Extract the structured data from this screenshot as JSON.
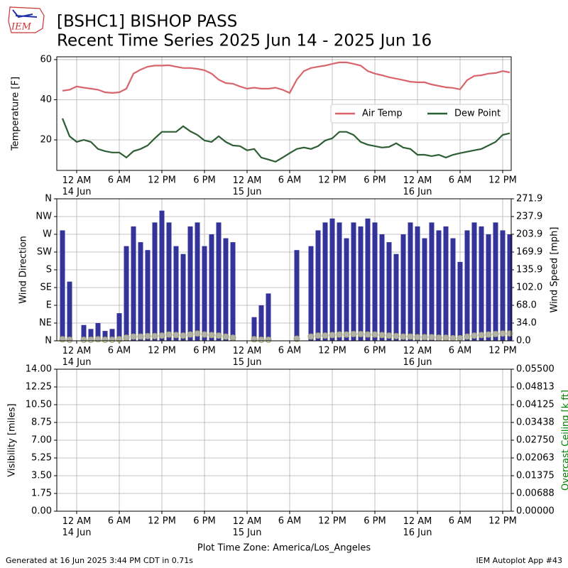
{
  "logo": "IEM",
  "footer_left": "Generated at 16 Jun 2025 3:44 PM CDT in 0.71s",
  "footer_right": "IEM Autoplot App #43",
  "chart_data": [
    {
      "type": "line",
      "title": "[BSHC1] BISHOP PASS",
      "subtitle": "Recent Time Series 2025 Jun 14 - 2025 Jun 16",
      "ylabel": "Temperature [F]",
      "grid": true,
      "legend": "center right",
      "xlim": [
        "2025-06-13T21:12",
        "2025-06-16T13:12"
      ],
      "xticks": [
        {
          "value": "2025-06-14T00:00",
          "label": "12 AM\n14 Jun"
        },
        {
          "value": "2025-06-14T06:00",
          "label": "6 AM"
        },
        {
          "value": "2025-06-14T12:00",
          "label": "12 PM"
        },
        {
          "value": "2025-06-14T18:00",
          "label": "6 PM"
        },
        {
          "value": "2025-06-15T00:00",
          "label": "12 AM\n15 Jun"
        },
        {
          "value": "2025-06-15T06:00",
          "label": "6 AM"
        },
        {
          "value": "2025-06-15T12:00",
          "label": "12 PM"
        },
        {
          "value": "2025-06-15T18:00",
          "label": "6 PM"
        },
        {
          "value": "2025-06-16T00:00",
          "label": "12 AM\n16 Jun"
        },
        {
          "value": "2025-06-16T06:00",
          "label": "6 AM"
        },
        {
          "value": "2025-06-16T12:00",
          "label": "12 PM"
        }
      ],
      "ylim": [
        4.8,
        61.4
      ],
      "yticks": [
        20,
        40,
        60
      ],
      "x": [
        "2025-06-13T22:00",
        "2025-06-13T23:00",
        "2025-06-14T00:00",
        "2025-06-14T01:00",
        "2025-06-14T02:00",
        "2025-06-14T03:00",
        "2025-06-14T04:00",
        "2025-06-14T05:00",
        "2025-06-14T06:00",
        "2025-06-14T07:00",
        "2025-06-14T08:00",
        "2025-06-14T09:00",
        "2025-06-14T10:00",
        "2025-06-14T11:00",
        "2025-06-14T12:00",
        "2025-06-14T13:00",
        "2025-06-14T14:00",
        "2025-06-14T15:00",
        "2025-06-14T16:00",
        "2025-06-14T17:00",
        "2025-06-14T18:00",
        "2025-06-14T19:00",
        "2025-06-14T20:00",
        "2025-06-14T21:00",
        "2025-06-14T22:00",
        "2025-06-14T23:00",
        "2025-06-15T00:00",
        "2025-06-15T01:00",
        "2025-06-15T02:00",
        "2025-06-15T03:00",
        "2025-06-15T04:00",
        "2025-06-15T05:00",
        "2025-06-15T06:00",
        "2025-06-15T07:00",
        "2025-06-15T08:00",
        "2025-06-15T09:00",
        "2025-06-15T10:00",
        "2025-06-15T11:00",
        "2025-06-15T12:00",
        "2025-06-15T13:00",
        "2025-06-15T14:00",
        "2025-06-15T15:00",
        "2025-06-15T16:00",
        "2025-06-15T17:00",
        "2025-06-15T18:00",
        "2025-06-15T19:00",
        "2025-06-15T20:00",
        "2025-06-15T21:00",
        "2025-06-15T22:00",
        "2025-06-15T23:00",
        "2025-06-16T00:00",
        "2025-06-16T01:00",
        "2025-06-16T02:00",
        "2025-06-16T03:00",
        "2025-06-16T04:00",
        "2025-06-16T05:00",
        "2025-06-16T06:00",
        "2025-06-16T07:00",
        "2025-06-16T08:00",
        "2025-06-16T09:00",
        "2025-06-16T10:00",
        "2025-06-16T11:00",
        "2025-06-16T12:00",
        "2025-06-16T13:00"
      ],
      "series": [
        {
          "name": "Air Temp",
          "color": "#d9646b",
          "values": [
            44.5,
            45,
            46.6,
            46,
            45.5,
            45,
            43.7,
            43.4,
            43.7,
            45.5,
            53,
            55,
            56.5,
            57,
            57,
            57.2,
            56.5,
            55.8,
            55.8,
            55.4,
            54.7,
            53,
            50,
            48.3,
            48,
            46.6,
            45.5,
            46,
            45.5,
            45.5,
            46,
            45,
            43.4,
            50,
            54.3,
            55.8,
            56.5,
            57,
            57.9,
            58.6,
            58.6,
            57.9,
            57,
            54.3,
            53,
            52.2,
            51.2,
            50.5,
            49.8,
            49,
            48.7,
            48.7,
            47.6,
            46.9,
            46.2,
            45.9,
            45.2,
            49.8,
            51.9,
            52.2,
            53,
            53.3,
            54.3,
            53.6
          ]
        },
        {
          "name": "Dew Point",
          "color": "#2e5e34",
          "values": [
            30.7,
            21.8,
            19,
            20,
            19,
            15.5,
            14.4,
            13.7,
            13.7,
            11.2,
            14.4,
            15.5,
            17.2,
            20.8,
            24,
            24,
            24,
            26.8,
            24.3,
            22.5,
            19.7,
            19,
            21.8,
            19,
            17.2,
            16.9,
            14.8,
            15.5,
            11.2,
            10.2,
            9.1,
            11.2,
            13.4,
            15.5,
            16.2,
            15.5,
            16.9,
            19.7,
            20.8,
            24,
            24,
            22.5,
            19,
            17.6,
            16.9,
            16.2,
            16.5,
            18.3,
            16.2,
            15.5,
            12.6,
            12.6,
            11.9,
            12.6,
            11.2,
            12.6,
            13.4,
            14.1,
            14.8,
            15.5,
            17.2,
            19,
            22.5,
            23.3
          ]
        }
      ]
    },
    {
      "type": "bar",
      "ylabel": "Wind Direction",
      "y2label": "Wind Speed [mph]",
      "grid": true,
      "xlim": [
        "2025-06-13T21:12",
        "2025-06-16T13:12"
      ],
      "xticks": [
        {
          "value": "2025-06-14T00:00",
          "label": "12 AM\n14 Jun"
        },
        {
          "value": "2025-06-14T06:00",
          "label": "6 AM"
        },
        {
          "value": "2025-06-14T12:00",
          "label": "12 PM"
        },
        {
          "value": "2025-06-14T18:00",
          "label": "6 PM"
        },
        {
          "value": "2025-06-15T00:00",
          "label": "12 AM\n15 Jun"
        },
        {
          "value": "2025-06-15T06:00",
          "label": "6 AM"
        },
        {
          "value": "2025-06-15T12:00",
          "label": "12 PM"
        },
        {
          "value": "2025-06-15T18:00",
          "label": "6 PM"
        },
        {
          "value": "2025-06-16T00:00",
          "label": "12 AM\n16 Jun"
        },
        {
          "value": "2025-06-16T06:00",
          "label": "6 AM"
        },
        {
          "value": "2025-06-16T12:00",
          "label": "12 PM"
        }
      ],
      "ylim": [
        0,
        360
      ],
      "yticks": [
        {
          "value": 0,
          "label": "N"
        },
        {
          "value": 45,
          "label": "NE"
        },
        {
          "value": 90,
          "label": "E"
        },
        {
          "value": 135,
          "label": "SE"
        },
        {
          "value": 180,
          "label": "S"
        },
        {
          "value": 225,
          "label": "SW"
        },
        {
          "value": 270,
          "label": "W"
        },
        {
          "value": 315,
          "label": "NW"
        },
        {
          "value": 360,
          "label": "N"
        }
      ],
      "y2lim": [
        0,
        271.9
      ],
      "y2ticks": [
        {
          "value": 0,
          "label": "0.0"
        },
        {
          "value": 34,
          "label": "34.0"
        },
        {
          "value": 68,
          "label": "68.0"
        },
        {
          "value": 102,
          "label": "102.0"
        },
        135.9,
        169.9,
        203.9,
        237.9,
        271.9
      ],
      "x": [
        "2025-06-13T22:00",
        "2025-06-13T23:00",
        "2025-06-14T00:00",
        "2025-06-14T01:00",
        "2025-06-14T02:00",
        "2025-06-14T03:00",
        "2025-06-14T04:00",
        "2025-06-14T05:00",
        "2025-06-14T06:00",
        "2025-06-14T07:00",
        "2025-06-14T08:00",
        "2025-06-14T09:00",
        "2025-06-14T10:00",
        "2025-06-14T11:00",
        "2025-06-14T12:00",
        "2025-06-14T13:00",
        "2025-06-14T14:00",
        "2025-06-14T15:00",
        "2025-06-14T16:00",
        "2025-06-14T17:00",
        "2025-06-14T18:00",
        "2025-06-14T19:00",
        "2025-06-14T20:00",
        "2025-06-14T21:00",
        "2025-06-14T22:00",
        "2025-06-14T23:00",
        "2025-06-15T00:00",
        "2025-06-15T01:00",
        "2025-06-15T02:00",
        "2025-06-15T03:00",
        "2025-06-15T04:00",
        "2025-06-15T05:00",
        "2025-06-15T06:00",
        "2025-06-15T07:00",
        "2025-06-15T08:00",
        "2025-06-15T09:00",
        "2025-06-15T10:00",
        "2025-06-15T11:00",
        "2025-06-15T12:00",
        "2025-06-15T13:00",
        "2025-06-15T14:00",
        "2025-06-15T15:00",
        "2025-06-15T16:00",
        "2025-06-15T17:00",
        "2025-06-15T18:00",
        "2025-06-15T19:00",
        "2025-06-15T20:00",
        "2025-06-15T21:00",
        "2025-06-15T22:00",
        "2025-06-15T23:00",
        "2025-06-16T00:00",
        "2025-06-16T01:00",
        "2025-06-16T02:00",
        "2025-06-16T03:00",
        "2025-06-16T04:00",
        "2025-06-16T05:00",
        "2025-06-16T06:00",
        "2025-06-16T07:00",
        "2025-06-16T08:00",
        "2025-06-16T09:00",
        "2025-06-16T10:00",
        "2025-06-16T11:00",
        "2025-06-16T12:00",
        "2025-06-16T13:00"
      ],
      "series": [
        {
          "type": "bar",
          "color": "#333399",
          "values": [
            280,
            150,
            null,
            40,
            30,
            45,
            25,
            30,
            70,
            240,
            290,
            250,
            230,
            300,
            330,
            300,
            240,
            220,
            290,
            300,
            240,
            270,
            300,
            260,
            250,
            null,
            null,
            60,
            90,
            120,
            null,
            null,
            null,
            230,
            null,
            240,
            280,
            300,
            310,
            300,
            260,
            300,
            290,
            310,
            300,
            270,
            250,
            220,
            270,
            300,
            290,
            260,
            300,
            280,
            290,
            260,
            200,
            280,
            300,
            290,
            270,
            300,
            280,
            270
          ]
        },
        {
          "type": "scatter",
          "axis": "y2",
          "color": "#a3a36a",
          "values": [
            3,
            2,
            null,
            2,
            2,
            3,
            2,
            2,
            3,
            6,
            8,
            8,
            9,
            9,
            10,
            12,
            11,
            10,
            12,
            14,
            12,
            11,
            10,
            8,
            6,
            null,
            null,
            3,
            2,
            2,
            null,
            null,
            null,
            4,
            null,
            8,
            10,
            10,
            11,
            12,
            12,
            13,
            13,
            12,
            12,
            11,
            10,
            9,
            8,
            8,
            7,
            7,
            7,
            6,
            6,
            5,
            5,
            8,
            10,
            11,
            12,
            13,
            14,
            14
          ]
        }
      ]
    },
    {
      "type": "line",
      "ylabel": "Visibility [miles]",
      "y2label": "Overcast Ceiling [k ft]",
      "y2color": "#008000",
      "grid": true,
      "xlabel": "Plot Time Zone: America/Los_Angeles",
      "xlim": [
        "2025-06-13T21:12",
        "2025-06-16T13:12"
      ],
      "xticks": [
        {
          "value": "2025-06-14T00:00",
          "label": "12 AM\n14 Jun"
        },
        {
          "value": "2025-06-14T06:00",
          "label": "6 AM"
        },
        {
          "value": "2025-06-14T12:00",
          "label": "12 PM"
        },
        {
          "value": "2025-06-14T18:00",
          "label": "6 PM"
        },
        {
          "value": "2025-06-15T00:00",
          "label": "12 AM\n15 Jun"
        },
        {
          "value": "2025-06-15T06:00",
          "label": "6 AM"
        },
        {
          "value": "2025-06-15T12:00",
          "label": "12 PM"
        },
        {
          "value": "2025-06-15T18:00",
          "label": "6 PM"
        },
        {
          "value": "2025-06-16T00:00",
          "label": "12 AM\n16 Jun"
        },
        {
          "value": "2025-06-16T06:00",
          "label": "6 AM"
        },
        {
          "value": "2025-06-16T12:00",
          "label": "12 PM"
        }
      ],
      "ylim": [
        0,
        14
      ],
      "yticks": [
        {
          "value": 0,
          "label": "0.00"
        },
        {
          "value": 1.75,
          "label": "1.75"
        },
        {
          "value": 3.5,
          "label": "3.50"
        },
        {
          "value": 5.25,
          "label": "5.25"
        },
        {
          "value": 7,
          "label": "7.00"
        },
        {
          "value": 8.75,
          "label": "8.75"
        },
        {
          "value": 10.5,
          "label": "10.50"
        },
        {
          "value": 12.25,
          "label": "12.25"
        },
        {
          "value": 14,
          "label": "14.00"
        }
      ],
      "y2lim": [
        0,
        0.055
      ],
      "y2ticks": [
        {
          "value": 0,
          "label": "0.00000"
        },
        {
          "value": 0.006875,
          "label": "0.00688"
        },
        {
          "value": 0.01375,
          "label": "0.01375"
        },
        {
          "value": 0.020625,
          "label": "0.02063"
        },
        {
          "value": 0.0275,
          "label": "0.02750"
        },
        {
          "value": 0.034375,
          "label": "0.03438"
        },
        {
          "value": 0.04125,
          "label": "0.04125"
        },
        {
          "value": 0.048125,
          "label": "0.04813"
        },
        {
          "value": 0.055,
          "label": "0.05500"
        }
      ]
    }
  ]
}
